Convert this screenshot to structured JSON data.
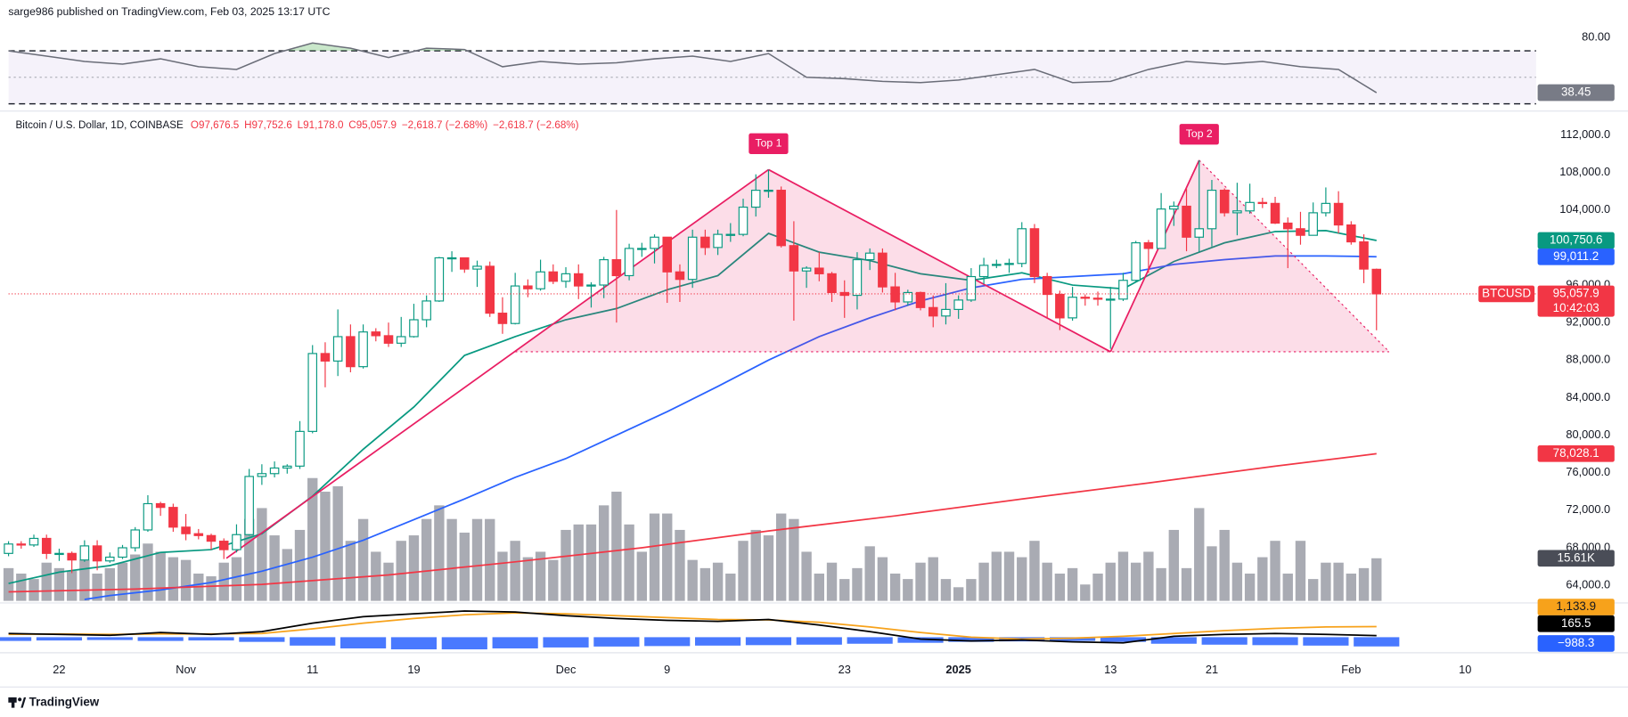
{
  "header": {
    "publisher": "sarge986 published on TradingView.com, Feb 03, 2025 13:17 UTC"
  },
  "footer": {
    "brand": "TradingView"
  },
  "chart_data": {
    "type": "candlestick",
    "legend": {
      "symbol": "Bitcoin / U.S. Dollar, 1D, COINBASE",
      "items": [
        "O97,676.5",
        "H97,752.6",
        "L91,178.0",
        "C95,057.9",
        "−2,618.7 (−2.68%)",
        "−2,618.7 (−2.68%)"
      ]
    },
    "xlim": [
      0,
      120.6
    ],
    "xticks": [
      {
        "value": 4,
        "label": "22"
      },
      {
        "value": 14,
        "label": "Nov"
      },
      {
        "value": 24,
        "label": "11"
      },
      {
        "value": 32,
        "label": "19"
      },
      {
        "value": 44,
        "label": "Dec"
      },
      {
        "value": 52,
        "label": "9"
      },
      {
        "value": 66,
        "label": "23"
      },
      {
        "value": 75,
        "label": "2025"
      },
      {
        "value": 87,
        "label": "13"
      },
      {
        "value": 95,
        "label": "21"
      },
      {
        "value": 106,
        "label": "Feb"
      },
      {
        "value": 115,
        "label": "10"
      }
    ],
    "ylim": [
      62230,
      114210
    ],
    "yticks": [
      {
        "value": 64000,
        "label": "64,000.0"
      },
      {
        "value": 68000,
        "label": "68,000.0"
      },
      {
        "value": 72000,
        "label": "72,000.0"
      },
      {
        "value": 76000,
        "label": "76,000.0"
      },
      {
        "value": 80000,
        "label": "80,000.0"
      },
      {
        "value": 84000,
        "label": "84,000.0"
      },
      {
        "value": 88000,
        "label": "88,000.0"
      },
      {
        "value": 92000,
        "label": "92,000.0"
      },
      {
        "value": 96000,
        "label": "96,000.0"
      },
      {
        "value": 100000,
        "label": "100,000.0"
      },
      {
        "value": 104000,
        "label": "104,000.0"
      },
      {
        "value": 108000,
        "label": "108,000.0"
      },
      {
        "value": 112000,
        "label": "112,000.0"
      }
    ],
    "up_color": "#089981",
    "down_color": "#f23645",
    "candles": [
      [
        67400,
        68700,
        67100,
        68400
      ],
      [
        68400,
        68700,
        67900,
        68300
      ],
      [
        68300,
        69400,
        68100,
        69000
      ],
      [
        69000,
        69400,
        66800,
        67400
      ],
      [
        67400,
        67900,
        66600,
        67400
      ],
      [
        67400,
        67600,
        65300,
        66700
      ],
      [
        66700,
        68800,
        66500,
        68200
      ],
      [
        68200,
        68800,
        65600,
        66600
      ],
      [
        66600,
        67500,
        66400,
        67000
      ],
      [
        67000,
        68300,
        66800,
        68000
      ],
      [
        68000,
        70200,
        67600,
        69900
      ],
      [
        69900,
        73600,
        69700,
        72700
      ],
      [
        72700,
        72900,
        71400,
        72300
      ],
      [
        72300,
        72700,
        69700,
        70200
      ],
      [
        70200,
        71600,
        68800,
        69500
      ],
      [
        69500,
        70000,
        68900,
        69300
      ],
      [
        69300,
        69500,
        67800,
        68700
      ],
      [
        68700,
        69000,
        66800,
        67800
      ],
      [
        67800,
        70500,
        67500,
        69400
      ],
      [
        69400,
        76400,
        69300,
        75600
      ],
      [
        75600,
        76900,
        74700,
        75900
      ],
      [
        75900,
        77200,
        75500,
        76500
      ],
      [
        76500,
        76900,
        75900,
        76700
      ],
      [
        76700,
        81500,
        76400,
        80400
      ],
      [
        80400,
        89600,
        80200,
        88700
      ],
      [
        88700,
        89900,
        85100,
        87900
      ],
      [
        87900,
        93400,
        86300,
        90500
      ],
      [
        90500,
        91800,
        86700,
        87300
      ],
      [
        87300,
        91800,
        87100,
        91000
      ],
      [
        91000,
        91400,
        90000,
        90600
      ],
      [
        90600,
        92000,
        89400,
        89800
      ],
      [
        89800,
        92600,
        89400,
        90500
      ],
      [
        90500,
        94000,
        90400,
        92300
      ],
      [
        92300,
        94900,
        91500,
        94300
      ],
      [
        94300,
        99000,
        94200,
        98900
      ],
      [
        98900,
        99600,
        97400,
        98900
      ],
      [
        98900,
        98900,
        97300,
        97700
      ],
      [
        97700,
        98600,
        95800,
        98000
      ],
      [
        98000,
        98500,
        92600,
        93000
      ],
      [
        93000,
        94700,
        90800,
        91900
      ],
      [
        91900,
        97300,
        91800,
        95900
      ],
      [
        95900,
        96600,
        94700,
        95600
      ],
      [
        95600,
        98700,
        95400,
        97400
      ],
      [
        97400,
        98200,
        96100,
        96400
      ],
      [
        96400,
        97900,
        95700,
        97200
      ],
      [
        97200,
        98200,
        94500,
        95900
      ],
      [
        95900,
        96300,
        93600,
        96000
      ],
      [
        96000,
        99000,
        94600,
        98700
      ],
      [
        98700,
        104000,
        92000,
        97000
      ],
      [
        97000,
        100400,
        96500,
        99900
      ],
      [
        99900,
        100500,
        99000,
        99900
      ],
      [
        99900,
        101400,
        98300,
        101100
      ],
      [
        101100,
        101100,
        94100,
        97400
      ],
      [
        97400,
        98200,
        94200,
        96600
      ],
      [
        96600,
        101900,
        95700,
        101100
      ],
      [
        101100,
        101900,
        99200,
        100000
      ],
      [
        100000,
        101900,
        99200,
        101400
      ],
      [
        101400,
        102600,
        100600,
        101400
      ],
      [
        101400,
        105200,
        101200,
        104300
      ],
      [
        104300,
        107800,
        103300,
        106100
      ],
      [
        106100,
        108300,
        105300,
        106100
      ],
      [
        106100,
        106500,
        100000,
        100200
      ],
      [
        100200,
        102800,
        92200,
        97500
      ],
      [
        97500,
        98000,
        95700,
        97800
      ],
      [
        97800,
        99500,
        96400,
        97200
      ],
      [
        97200,
        97400,
        94200,
        95200
      ],
      [
        95200,
        96500,
        92500,
        94900
      ],
      [
        94900,
        99500,
        93400,
        98700
      ],
      [
        98700,
        99900,
        97600,
        99400
      ],
      [
        99400,
        99900,
        95200,
        95800
      ],
      [
        95800,
        97300,
        93300,
        94200
      ],
      [
        94200,
        95500,
        93800,
        95200
      ],
      [
        95200,
        95300,
        93300,
        93600
      ],
      [
        93600,
        94900,
        91500,
        92700
      ],
      [
        92700,
        96200,
        91800,
        93400
      ],
      [
        93400,
        94900,
        92400,
        94400
      ],
      [
        94400,
        97800,
        94200,
        96900
      ],
      [
        96900,
        98900,
        96100,
        98100
      ],
      [
        98100,
        98700,
        97800,
        98200
      ],
      [
        98200,
        98800,
        97300,
        98300
      ],
      [
        98300,
        102700,
        97900,
        102000
      ],
      [
        102000,
        102500,
        96200,
        96900
      ],
      [
        96900,
        97300,
        92500,
        95000
      ],
      [
        95000,
        95400,
        91200,
        92500
      ],
      [
        92500,
        95800,
        92200,
        94700
      ],
      [
        94700,
        95000,
        93800,
        94600
      ],
      [
        94600,
        95300,
        93800,
        94500
      ],
      [
        94500,
        95800,
        89200,
        94500
      ],
      [
        94500,
        97300,
        94300,
        96500
      ],
      [
        96500,
        100700,
        96400,
        100500
      ],
      [
        100500,
        100800,
        97300,
        99900
      ],
      [
        99900,
        105800,
        99900,
        104100
      ],
      [
        104100,
        104900,
        102300,
        104400
      ],
      [
        104400,
        106300,
        99600,
        101100
      ],
      [
        101100,
        109300,
        99500,
        102000
      ],
      [
        102000,
        107200,
        100100,
        106100
      ],
      [
        106100,
        106300,
        103300,
        103700
      ],
      [
        103700,
        106900,
        101300,
        103900
      ],
      [
        103900,
        106800,
        103600,
        104800
      ],
      [
        104800,
        105300,
        104200,
        104700
      ],
      [
        104700,
        105400,
        102500,
        102600
      ],
      [
        102600,
        103200,
        97800,
        102000
      ],
      [
        102000,
        103800,
        100300,
        101300
      ],
      [
        101300,
        104800,
        101300,
        103700
      ],
      [
        103700,
        106400,
        103300,
        104700
      ],
      [
        104700,
        106000,
        101500,
        102400
      ],
      [
        102400,
        102800,
        100300,
        100600
      ],
      [
        100600,
        101400,
        96200,
        97700
      ],
      [
        97676.5,
        97752.6,
        91178.0,
        95057.9
      ]
    ],
    "series": [
      {
        "color": "#089981",
        "end_label": "100,750.6",
        "x": [
          0,
          4,
          8,
          12,
          16,
          20,
          24,
          28,
          32,
          36,
          40,
          44,
          48,
          52,
          56,
          60,
          64,
          68,
          72,
          76,
          80,
          84,
          88,
          92,
          96,
          100,
          104,
          108
        ],
        "values": [
          64200,
          65400,
          66100,
          67500,
          67800,
          69500,
          73500,
          78500,
          83000,
          88500,
          90500,
          92300,
          93500,
          95500,
          97000,
          101500,
          99500,
          98600,
          97200,
          96500,
          97300,
          96000,
          95600,
          98500,
          100500,
          101700,
          101800,
          100750.6
        ]
      },
      {
        "color": "#2962ff",
        "end_label": "99,011.2",
        "x": [
          6,
          8,
          12,
          16,
          20,
          24,
          28,
          32,
          36,
          40,
          44,
          48,
          52,
          56,
          60,
          64,
          68,
          72,
          76,
          80,
          84,
          88,
          92,
          96,
          100,
          104,
          108
        ],
        "values": [
          62500,
          62900,
          63500,
          64300,
          65500,
          67000,
          68800,
          71000,
          73200,
          75500,
          77500,
          80000,
          82500,
          85200,
          88000,
          90500,
          92500,
          94300,
          95700,
          96600,
          96900,
          97200,
          98200,
          98700,
          99100,
          99100,
          99011.2
        ]
      },
      {
        "color": "#f23645",
        "end_label": "78,028.1",
        "x": [
          0,
          10,
          20,
          30,
          40,
          50,
          60,
          70,
          80,
          90,
          100,
          108
        ],
        "values": [
          63300,
          63600,
          64100,
          65100,
          66500,
          68000,
          69800,
          71400,
          73200,
          74900,
          76700,
          78028.1
        ]
      }
    ],
    "last_price": {
      "value": 95057.9,
      "label": "95,057.9",
      "countdown": "10:42:03",
      "symbol": "BTCUSD"
    },
    "volume": {
      "color": "#a9abb3",
      "last_label": "15.61K",
      "values": [
        12,
        10,
        8,
        14,
        12,
        11,
        15,
        10,
        12,
        14,
        17,
        21,
        18,
        16,
        15,
        10,
        9,
        14,
        16,
        30,
        34,
        24,
        19,
        26,
        45,
        40,
        42,
        22,
        30,
        18,
        14,
        22,
        24,
        30,
        35,
        30,
        25,
        30,
        30,
        18,
        22,
        16,
        18,
        15,
        26,
        28,
        28,
        35,
        40,
        28,
        18,
        32,
        32,
        26,
        15,
        12,
        14,
        10,
        22,
        26,
        24,
        32,
        30,
        18,
        10,
        14,
        8,
        12,
        20,
        16,
        10,
        8,
        14,
        16,
        8,
        5,
        8,
        14,
        18,
        18,
        16,
        22,
        14,
        10,
        12,
        6,
        10,
        14,
        18,
        14,
        18,
        12,
        26,
        12,
        34,
        20,
        26,
        14,
        10,
        16,
        22,
        10,
        22,
        8,
        14,
        14,
        10,
        12,
        15.61
      ]
    },
    "pattern": {
      "color": "#e91e63",
      "x": [
        17.2,
        60,
        87,
        94,
        109
      ],
      "values": [
        66880,
        108300,
        88890,
        109300,
        88890
      ],
      "neckline": {
        "x": [
          40,
          109
        ],
        "value": 88890
      }
    },
    "annotations": [
      {
        "label": "Top 1",
        "x": 60,
        "y": 108300
      },
      {
        "label": "Top 2",
        "x": 94,
        "y": 109300
      }
    ],
    "rsi": {
      "color": "#6a6d78",
      "ylim": [
        26.9,
        89.6
      ],
      "yticks": [
        {
          "value": 80,
          "label": "80.00"
        }
      ],
      "bands": [
        70,
        50,
        30
      ],
      "last_label": "38.45",
      "x": [
        0,
        3,
        6,
        9,
        12,
        15,
        18,
        21,
        24,
        27,
        30,
        33,
        36,
        39,
        42,
        45,
        48,
        51,
        54,
        57,
        60,
        63,
        66,
        69,
        72,
        75,
        78,
        81,
        84,
        87,
        90,
        93,
        96,
        99,
        102,
        105,
        108
      ],
      "values": [
        70,
        66,
        62,
        60,
        64,
        58,
        56,
        68,
        76,
        72,
        65,
        72,
        71,
        58,
        62,
        60,
        61,
        64,
        66,
        62,
        68,
        50,
        49,
        47,
        46,
        48,
        52,
        56,
        46,
        47,
        56,
        62,
        60,
        62,
        58,
        56,
        38.45
      ]
    },
    "macd": {
      "ylim": [
        -1444,
        3556
      ],
      "x": [
        0,
        4,
        8,
        12,
        16,
        20,
        24,
        28,
        32,
        36,
        40,
        44,
        48,
        52,
        56,
        60,
        64,
        68,
        72,
        76,
        80,
        84,
        88,
        92,
        96,
        100,
        104,
        108
      ],
      "lines": [
        {
          "color": "#f7a21b",
          "last_label": "1,133.9",
          "values": [
            300,
            350,
            300,
            350,
            350,
            400,
            900,
            1500,
            2000,
            2400,
            2600,
            2500,
            2300,
            2100,
            1900,
            1850,
            1600,
            1100,
            500,
            0,
            -200,
            -100,
            100,
            400,
            700,
            950,
            1100,
            1133.9
          ]
        },
        {
          "color": "#000000",
          "last_label": "165.5",
          "values": [
            400,
            300,
            200,
            500,
            300,
            600,
            1500,
            2200,
            2500,
            2800,
            2700,
            2300,
            2000,
            1800,
            1700,
            1900,
            1300,
            600,
            -200,
            -400,
            -300,
            -500,
            -600,
            100,
            300,
            400,
            300,
            165.5
          ]
        }
      ],
      "histogram": {
        "color": "#2962ff",
        "last_label": "−988.3",
        "values": [
          -400,
          -350,
          -300,
          -400,
          -350,
          -500,
          -900,
          -1200,
          -1300,
          -1300,
          -1200,
          -1100,
          -1000,
          -950,
          -900,
          -850,
          -800,
          -700,
          -600,
          -500,
          -450,
          -400,
          -500,
          -700,
          -800,
          -850,
          -900,
          -988.3
        ]
      }
    }
  }
}
